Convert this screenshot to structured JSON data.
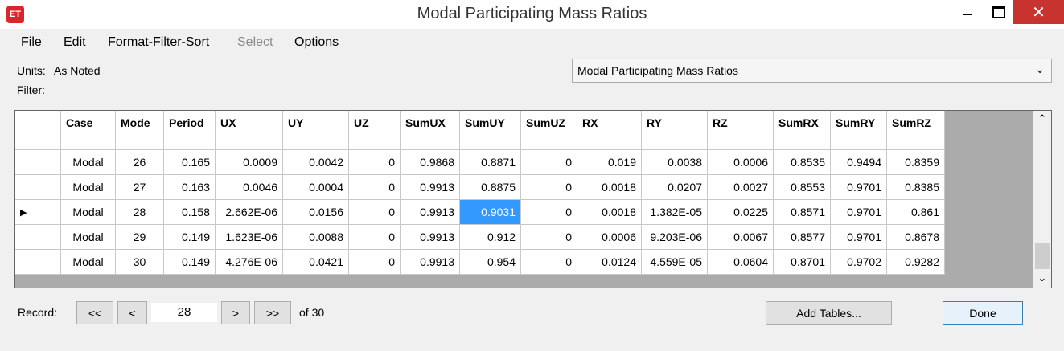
{
  "window": {
    "icon": "ET",
    "title": "Modal Participating Mass Ratios"
  },
  "menu": [
    "File",
    "Edit",
    "Format-Filter-Sort",
    "Select",
    "Options"
  ],
  "units_label": "Units:",
  "units_value": "As Noted",
  "filter_label": "Filter:",
  "dropdown": "Modal Participating Mass Ratios",
  "table": {
    "headers": [
      "Case",
      "Mode",
      "Period",
      "UX",
      "UY",
      "UZ",
      "SumUX",
      "SumUY",
      "SumUZ",
      "RX",
      "RY",
      "RZ",
      "SumRX",
      "SumRY",
      "SumRZ"
    ],
    "rows": [
      [
        "Modal",
        "26",
        "0.165",
        "0.0009",
        "0.0042",
        "0",
        "0.9868",
        "0.8871",
        "0",
        "0.019",
        "0.0038",
        "0.0006",
        "0.8535",
        "0.9494",
        "0.8359"
      ],
      [
        "Modal",
        "27",
        "0.163",
        "0.0046",
        "0.0004",
        "0",
        "0.9913",
        "0.8875",
        "0",
        "0.0018",
        "0.0207",
        "0.0027",
        "0.8553",
        "0.9701",
        "0.8385"
      ],
      [
        "Modal",
        "28",
        "0.158",
        "2.662E-06",
        "0.0156",
        "0",
        "0.9913",
        "0.9031",
        "0",
        "0.0018",
        "1.382E-05",
        "0.0225",
        "0.8571",
        "0.9701",
        "0.861"
      ],
      [
        "Modal",
        "29",
        "0.149",
        "1.623E-06",
        "0.0088",
        "0",
        "0.9913",
        "0.912",
        "0",
        "0.0006",
        "9.203E-06",
        "0.0067",
        "0.8577",
        "0.9701",
        "0.8678"
      ],
      [
        "Modal",
        "30",
        "0.149",
        "4.276E-06",
        "0.0421",
        "0",
        "0.9913",
        "0.954",
        "0",
        "0.0124",
        "4.559E-05",
        "0.0604",
        "0.8701",
        "0.9702",
        "0.9282"
      ]
    ]
  },
  "record": {
    "label": "Record:",
    "first": "<<",
    "prev": "<",
    "current": "28",
    "next": ">",
    "last": ">>",
    "of": "of 30"
  },
  "buttons": {
    "add_tables": "Add Tables...",
    "done": "Done"
  }
}
